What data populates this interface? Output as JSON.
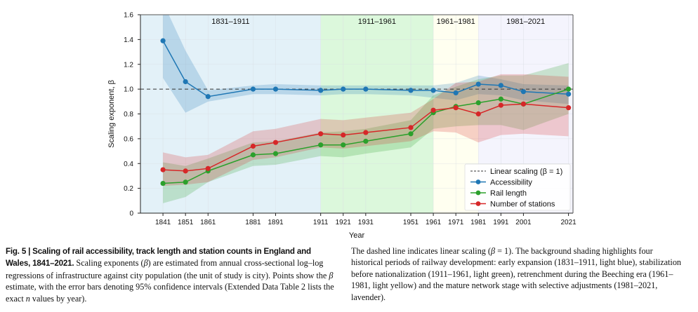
{
  "chart_data": {
    "type": "line",
    "xlabel": "Year",
    "ylabel": "Scaling exponent, β",
    "xlim": [
      1831,
      2023
    ],
    "ylim": [
      0,
      1.6
    ],
    "x_ticks": [
      1841,
      1851,
      1861,
      1881,
      1891,
      1911,
      1921,
      1931,
      1951,
      1961,
      1971,
      1981,
      1991,
      2001,
      2021
    ],
    "y_ticks": [
      0,
      0.2,
      0.4,
      0.6,
      0.8,
      1.0,
      1.2,
      1.4,
      1.6
    ],
    "y_tick_labels": [
      "0",
      "0.2",
      "0.4",
      "0.6",
      "0.8",
      "1.0",
      "1.2",
      "1.4",
      "1.6"
    ],
    "grid": true,
    "reference_line": {
      "y": 1.0,
      "style": "dashed",
      "label": "Linear scaling (β = 1)",
      "color": "#333333"
    },
    "periods": [
      {
        "label": "1831–1911",
        "start": 1831,
        "end": 1911,
        "color": "#e3f1f8"
      },
      {
        "label": "1911–1961",
        "start": 1911,
        "end": 1961,
        "color": "#dcf8dc"
      },
      {
        "label": "1961–1981",
        "start": 1961,
        "end": 1981,
        "color": "#fffff0"
      },
      {
        "label": "1981–2021",
        "start": 1981,
        "end": 2023,
        "color": "#f4f4fd"
      }
    ],
    "x": [
      1841,
      1851,
      1861,
      1881,
      1891,
      1911,
      1921,
      1931,
      1951,
      1961,
      1971,
      1981,
      1991,
      2001,
      2021
    ],
    "series": [
      {
        "name": "Accessibility",
        "color": "#1f77b4",
        "band_color": "#1f77b4",
        "values": [
          1.39,
          1.06,
          0.94,
          1.0,
          1.0,
          0.99,
          1.0,
          1.0,
          0.99,
          0.99,
          0.97,
          1.04,
          1.03,
          0.98,
          0.96
        ],
        "ci_upper": [
          1.7,
          1.31,
          0.99,
          1.03,
          1.04,
          1.03,
          1.03,
          1.03,
          1.03,
          1.03,
          1.05,
          1.11,
          1.08,
          1.04,
          1.03
        ],
        "ci_lower": [
          1.09,
          0.81,
          0.9,
          0.96,
          0.96,
          0.95,
          0.96,
          0.96,
          0.95,
          0.93,
          0.91,
          0.96,
          0.95,
          0.91,
          0.88
        ]
      },
      {
        "name": "Rail length",
        "color": "#2ca02c",
        "band_color": "#2ca02c",
        "values": [
          0.24,
          0.25,
          0.34,
          0.47,
          0.48,
          0.55,
          0.55,
          0.58,
          0.64,
          0.81,
          0.86,
          0.89,
          0.92,
          0.88,
          1.0
        ],
        "ci_upper": [
          0.41,
          0.38,
          0.44,
          0.57,
          0.58,
          0.65,
          0.66,
          0.68,
          0.75,
          0.95,
          1.02,
          1.08,
          1.11,
          1.11,
          1.21
        ],
        "ci_lower": [
          0.08,
          0.13,
          0.25,
          0.38,
          0.39,
          0.46,
          0.45,
          0.48,
          0.53,
          0.68,
          0.7,
          0.71,
          0.71,
          0.67,
          0.8
        ]
      },
      {
        "name": "Number of stations",
        "color": "#d62728",
        "band_color": "#d62728",
        "values": [
          0.35,
          0.34,
          0.36,
          0.54,
          0.57,
          0.64,
          0.63,
          0.65,
          0.69,
          0.83,
          0.85,
          0.8,
          0.87,
          0.88,
          0.85
        ],
        "ci_upper": [
          0.49,
          0.45,
          0.47,
          0.66,
          0.68,
          0.76,
          0.75,
          0.77,
          0.81,
          0.92,
          1.05,
          1.06,
          1.12,
          1.12,
          1.1
        ],
        "ci_lower": [
          0.22,
          0.23,
          0.25,
          0.43,
          0.45,
          0.53,
          0.52,
          0.54,
          0.58,
          0.66,
          0.65,
          0.57,
          0.63,
          0.64,
          0.62
        ]
      }
    ],
    "legend": {
      "placement": "lower-right",
      "entries": [
        "Linear scaling (β = 1)",
        "Accessibility",
        "Rail length",
        "Number of stations"
      ]
    }
  },
  "caption": {
    "figure_label": "Fig. 5 | Scaling of rail accessibility, track length and station counts in England and Wales, 1841–2021.",
    "left_body_1": " Scaling exponents (",
    "beta_1": "β",
    "left_body_2": ") are estimated from annual cross-sectional log–log regressions of infrastructure against city population (the unit of study is city). Points show the ",
    "beta_2": "β",
    "left_body_3": " estimate, with the error bars denoting 95% confidence intervals (Extended Data Table 2 lists the exact ",
    "n_symbol": "n",
    "left_body_4": " values by year).",
    "right_body_1": "The dashed line indicates linear scaling (",
    "beta_3": "β",
    "right_body_2": " = 1). The background shading highlights four historical periods of railway development: early expansion (1831–1911, light blue), stabilization before nationalization (1911–1961, light green), retrenchment during the Beeching era (1961–1981, light yellow) and the mature network stage with selective adjustments (1981–2021, lavender)."
  }
}
